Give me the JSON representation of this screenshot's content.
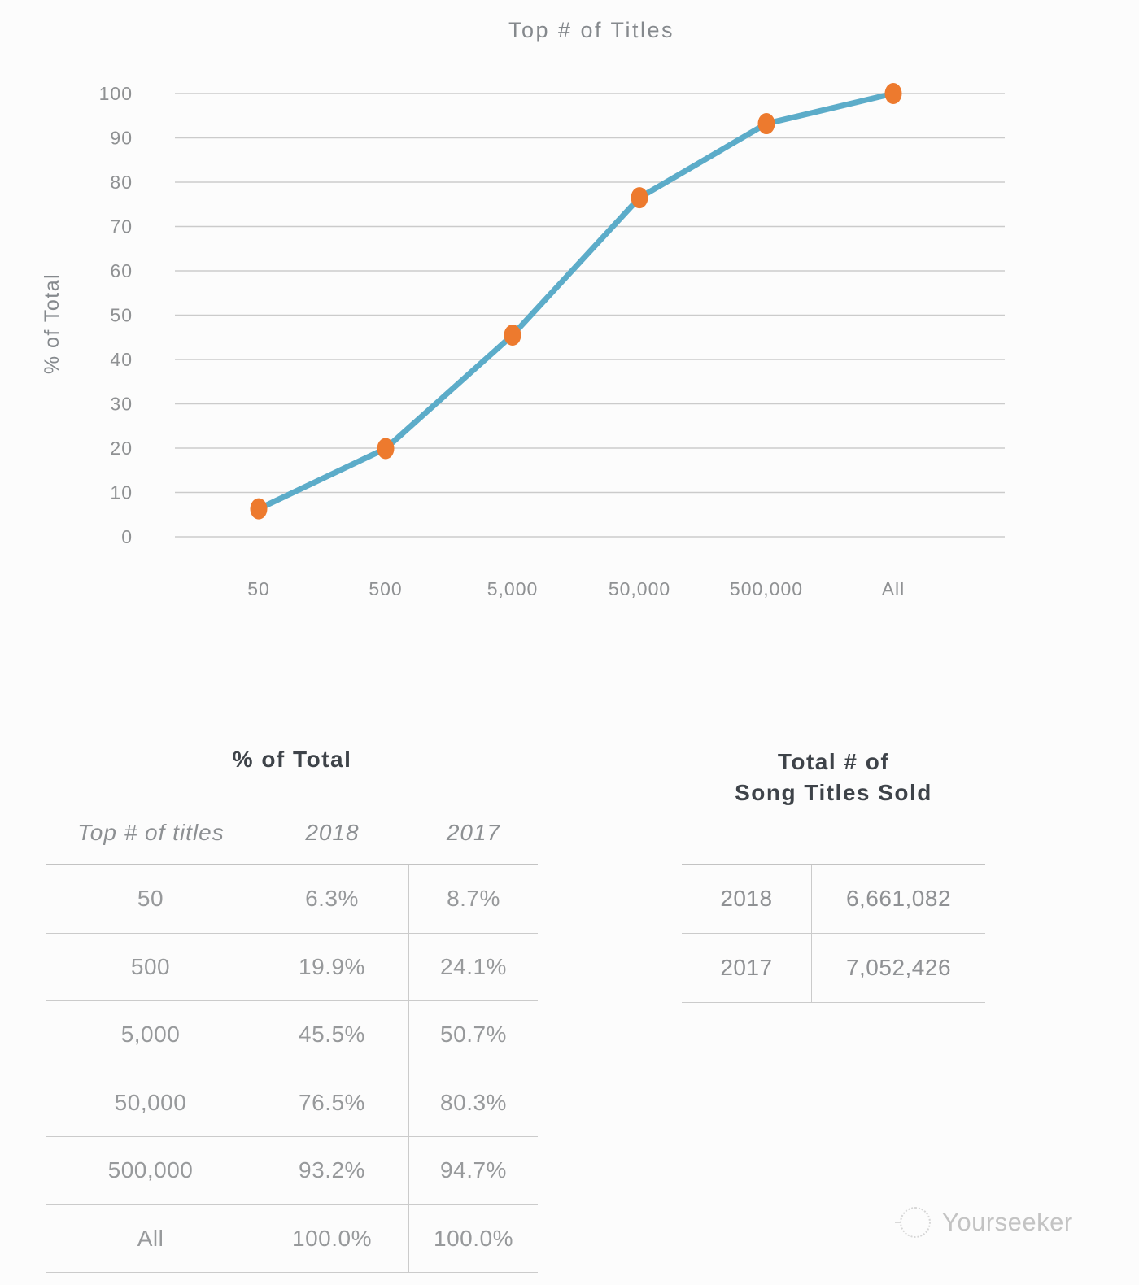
{
  "chart_data": {
    "type": "line",
    "title": "Top # of Titles",
    "xlabel": "",
    "ylabel": "% of Total",
    "categories": [
      "50",
      "500",
      "5,000",
      "50,000",
      "500,000",
      "All"
    ],
    "yticks": [
      0,
      10,
      20,
      30,
      40,
      50,
      60,
      70,
      80,
      90,
      100
    ],
    "ylim": [
      0,
      100
    ],
    "grid": "horizontal-only",
    "legend_position": "none",
    "series": [
      {
        "name": "2018",
        "values": [
          6.3,
          19.9,
          45.5,
          76.5,
          93.2,
          100.0
        ],
        "line_color": "#5CACC9",
        "marker_color": "#ED7A2E"
      }
    ]
  },
  "left_table": {
    "title": "% of Total",
    "columns": [
      "Top # of titles",
      "2018",
      "2017"
    ],
    "rows": [
      [
        "50",
        "6.3%",
        "8.7%"
      ],
      [
        "500",
        "19.9%",
        "24.1%"
      ],
      [
        "5,000",
        "45.5%",
        "50.7%"
      ],
      [
        "50,000",
        "76.5%",
        "80.3%"
      ],
      [
        "500,000",
        "93.2%",
        "94.7%"
      ],
      [
        "All",
        "100.0%",
        "100.0%"
      ]
    ]
  },
  "right_table": {
    "title_line1": "Total # of",
    "title_line2": "Song Titles Sold",
    "rows": [
      [
        "2018",
        "6,661,082"
      ],
      [
        "2017",
        "7,052,426"
      ]
    ]
  },
  "watermark": {
    "label": "Yourseeker",
    "icon": "dotted-circle-sketch"
  },
  "colors": {
    "background": "#fcfcfc",
    "line": "#5CACC9",
    "marker": "#ED7A2E",
    "gridline": "#cbcbcb",
    "axis_text": "#8f9193",
    "title_text": "#85898d",
    "table_dark_text": "#3e4349",
    "table_gray_text": "#97999b",
    "watermark_text": "#c3c3c3"
  }
}
